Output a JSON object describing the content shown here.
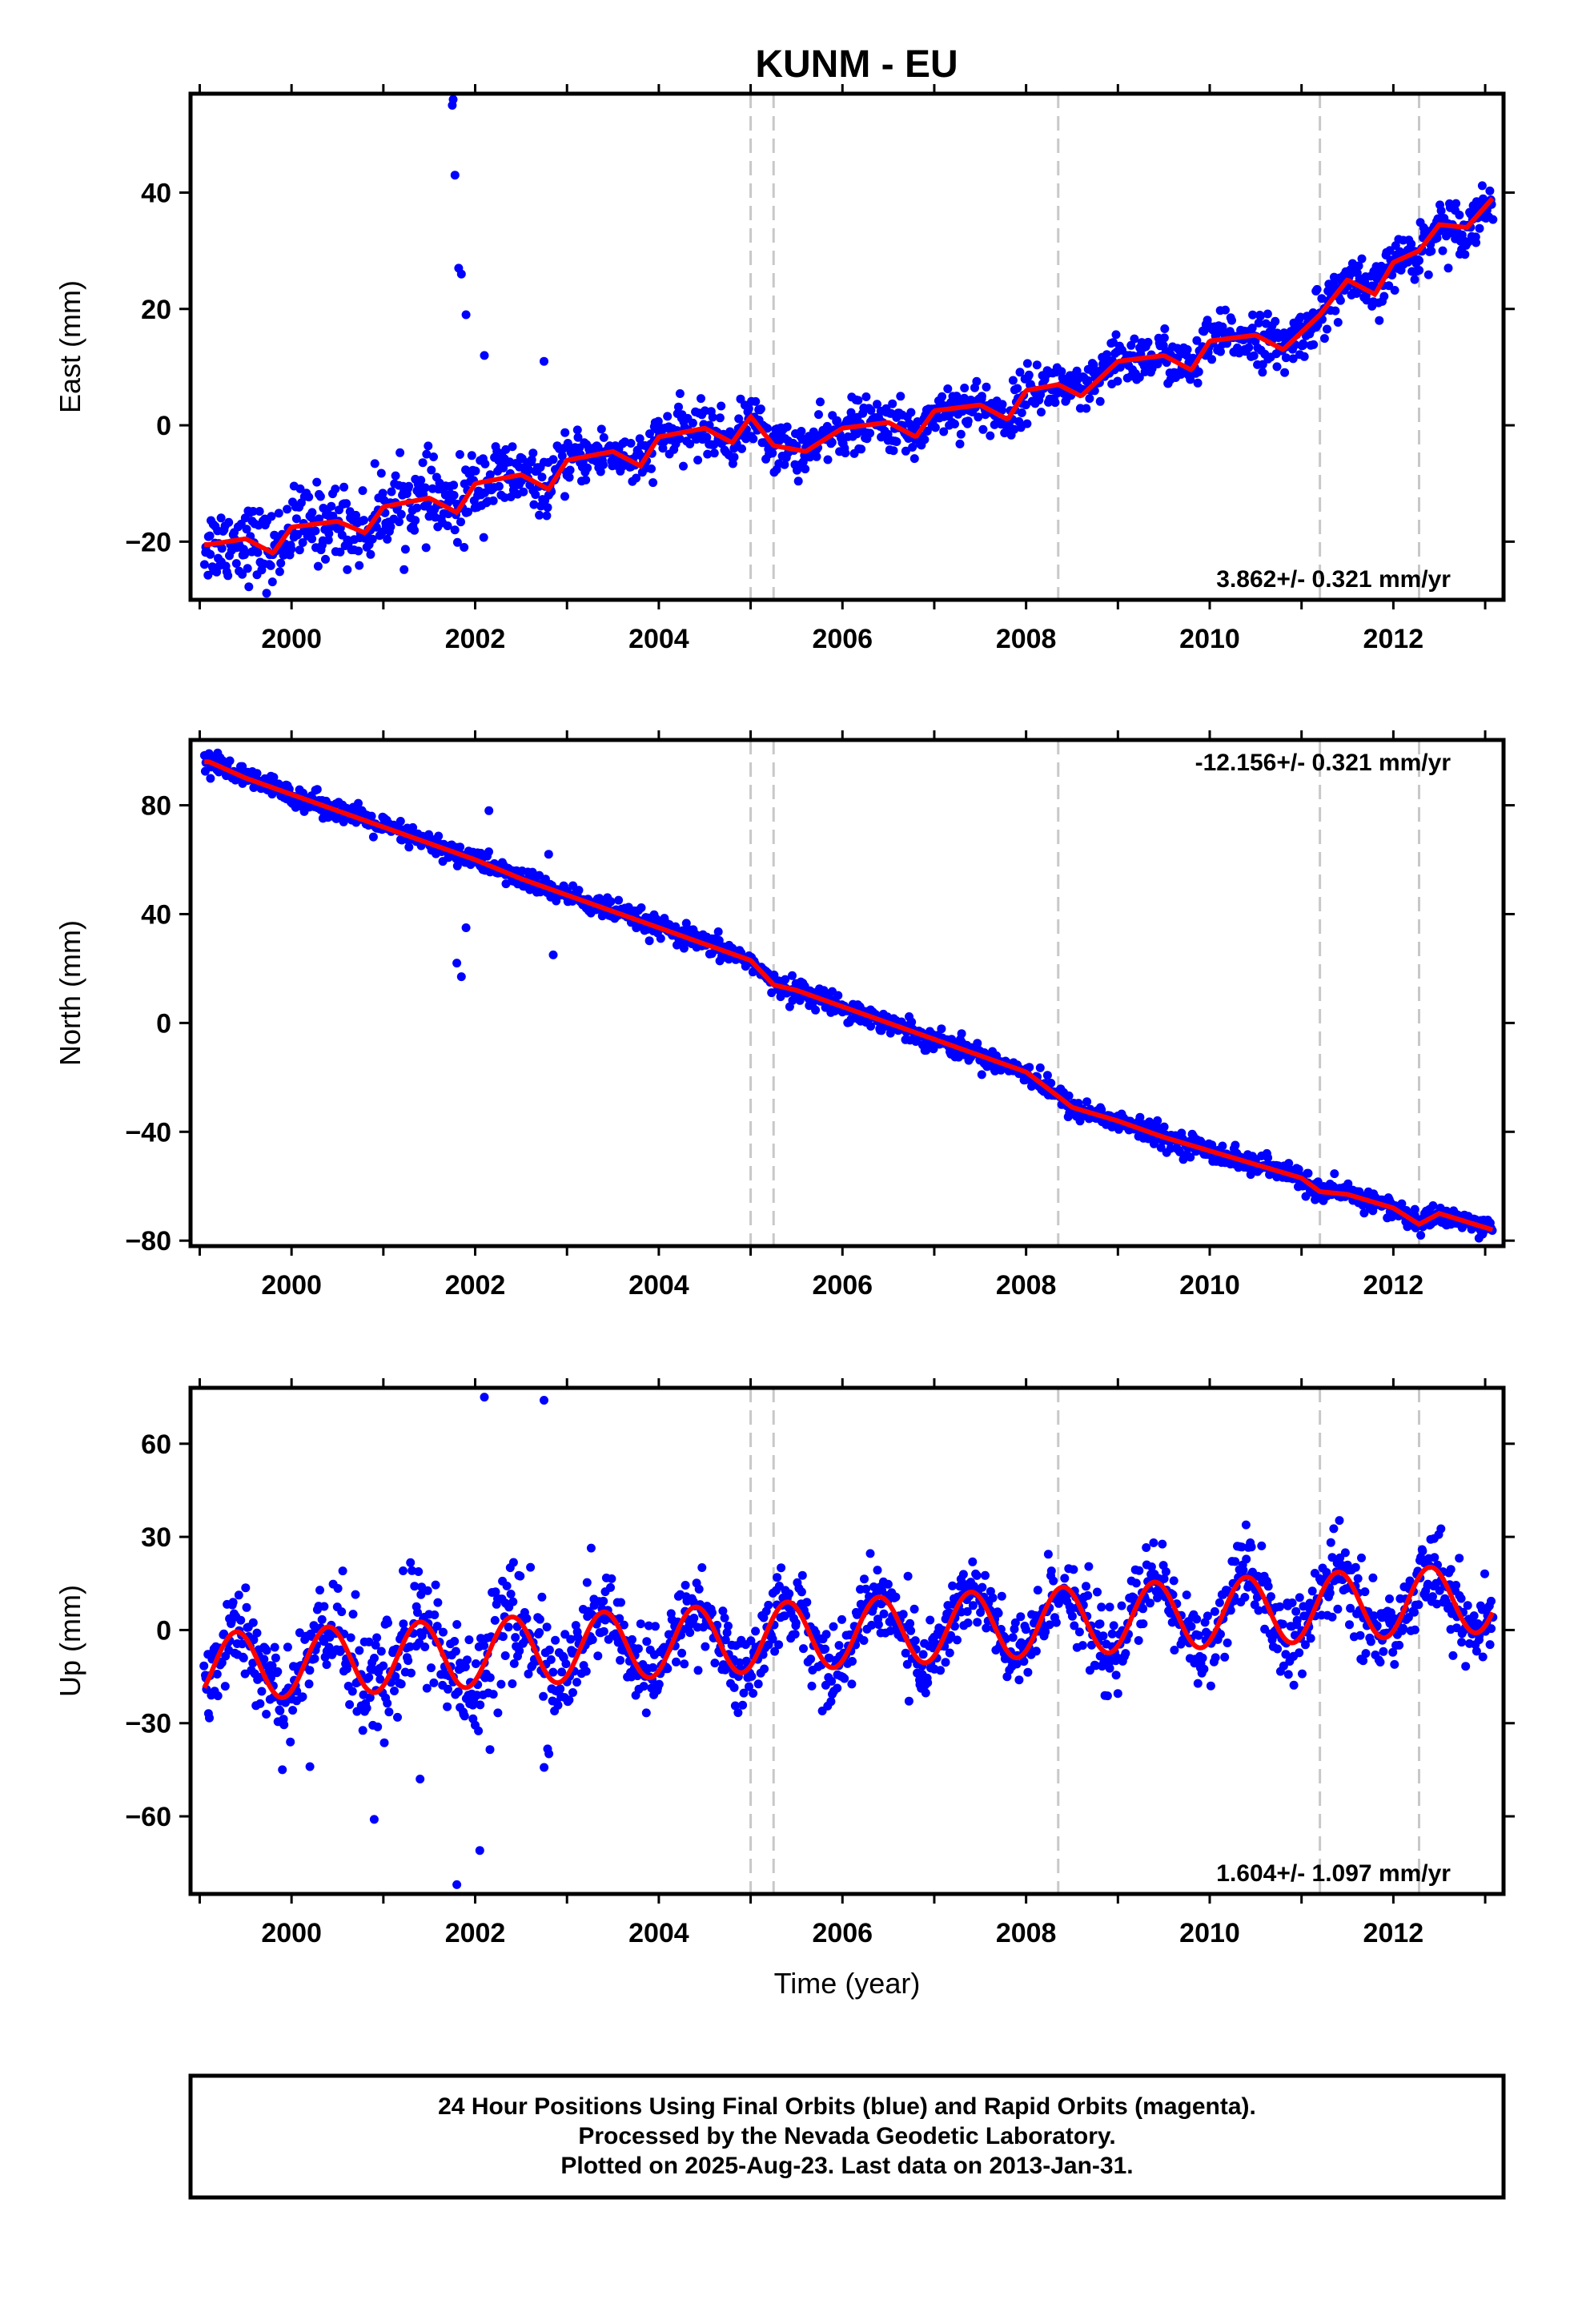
{
  "chart_data": {
    "title": "KUNM - EU",
    "xlabel": "Time (year)",
    "type": "scatter",
    "xlim": [
      1998.9,
      2013.2
    ],
    "x_ticks": [
      "2000",
      "2002",
      "2004",
      "2006",
      "2008",
      "2010",
      "2012"
    ],
    "grid": false,
    "event_lines": [
      2005.0,
      2005.25,
      2008.35,
      2011.2,
      2012.28
    ],
    "colors": {
      "points": "#0000ff",
      "fit": "#ff0000",
      "event": "#c8c8c8"
    },
    "panels": [
      {
        "type": "scatter",
        "ylabel": "East (mm)",
        "ylim": [
          -30,
          57
        ],
        "y_ticks": [
          "40",
          "20",
          "0",
          "−20"
        ],
        "rate": "3.862+/- 0.321 mm/yr",
        "rate_position": "bottom-right",
        "series": [
          {
            "x": [
              1999.1,
              1999.5,
              1999.8,
              2000.0,
              2000.5,
              2000.8,
              2001.0,
              2001.5,
              2001.8,
              2002.0,
              2002.5,
              2002.8,
              2003.0,
              2003.5,
              2003.8,
              2004.0,
              2004.5,
              2004.8,
              2005.0,
              2005.25,
              2005.6,
              2006.0,
              2006.5,
              2006.8,
              2007.0,
              2007.5,
              2007.8,
              2008.0,
              2008.35,
              2008.6,
              2009.0,
              2009.5,
              2009.8,
              2010.0,
              2010.5,
              2010.8,
              2011.2,
              2011.5,
              2011.8,
              2012.0,
              2012.28,
              2012.5,
              2012.8,
              2013.08
            ],
            "y": [
              -20.5,
              -19.5,
              -22.0,
              -17.5,
              -16.5,
              -18.5,
              -14.0,
              -12.5,
              -15.0,
              -10.0,
              -8.5,
              -11.0,
              -6.0,
              -4.5,
              -7.0,
              -2.0,
              -0.5,
              -3.0,
              1.5,
              -3.5,
              -4.5,
              -0.5,
              0.5,
              -2.0,
              2.5,
              3.5,
              1.0,
              6.0,
              7.0,
              5.0,
              11.0,
              12.0,
              9.5,
              14.5,
              15.5,
              13.0,
              19.0,
              25.0,
              22.5,
              28.0,
              30.0,
              34.5,
              34.0,
              39.0
            ]
          }
        ],
        "outliers": {
          "x": [
            2001.75,
            2001.76,
            2001.78,
            2001.82,
            2001.85,
            2001.9,
            2002.1,
            2002.75
          ],
          "y": [
            55,
            56,
            43,
            27,
            26,
            19,
            12,
            11
          ]
        }
      },
      {
        "type": "scatter",
        "ylabel": "North (mm)",
        "ylim": [
          -82,
          104
        ],
        "y_ticks": [
          "80",
          "40",
          "0",
          "−40",
          "−80"
        ],
        "rate": "-12.156+/- 0.321 mm/yr",
        "rate_position": "top-right",
        "series": [
          {
            "x": [
              1999.1,
              1999.5,
              2000.0,
              2000.5,
              2001.0,
              2001.5,
              2002.0,
              2002.5,
              2003.0,
              2003.5,
              2004.0,
              2004.5,
              2005.0,
              2005.25,
              2005.5,
              2006.0,
              2006.5,
              2007.0,
              2007.5,
              2008.0,
              2008.35,
              2008.5,
              2009.0,
              2009.5,
              2010.0,
              2010.5,
              2011.0,
              2011.2,
              2011.5,
              2012.0,
              2012.28,
              2012.5,
              2013.08
            ],
            "y": [
              96,
              90,
              84,
              78,
              72,
              66,
              60,
              53,
              47,
              41,
              35,
              29,
              23,
              14,
              12,
              6,
              0,
              -6,
              -12,
              -18,
              -27,
              -31,
              -36,
              -42,
              -47,
              -52,
              -57,
              -62,
              -63,
              -68,
              -74,
              -70,
              -76
            ]
          }
        ],
        "outliers": {
          "x": [
            2001.8,
            2001.85,
            2001.9,
            2002.15,
            2002.8,
            2002.85
          ],
          "y": [
            22,
            17,
            35,
            78,
            62,
            25
          ]
        }
      },
      {
        "type": "scatter",
        "ylabel": "Up (mm)",
        "ylim": [
          -85,
          78
        ],
        "y_ticks": [
          "60",
          "30",
          "0",
          "−30",
          "−60"
        ],
        "rate": "1.604+/- 1.097 mm/yr",
        "rate_position": "bottom-right",
        "fit": {
          "trend_mm_per_yr": 1.604,
          "seasonal_amplitude_mm": 11.0,
          "peak_phase_year": 0.4
        },
        "outliers": {
          "x": [
            2002.1,
            2002.75,
            2001.8,
            2002.05,
            2000.9,
            2001.4,
            1999.9,
            2000.2
          ],
          "y": [
            75,
            74,
            -82,
            -71,
            -61,
            -48,
            -45,
            -44
          ]
        }
      }
    ],
    "footer": {
      "line1": "24 Hour Positions Using Final Orbits (blue) and Rapid Orbits (magenta).",
      "line2": "Processed by the Nevada Geodetic Laboratory.",
      "line3": "Plotted on 2025-Aug-23. Last data on 2013-Jan-31."
    }
  }
}
